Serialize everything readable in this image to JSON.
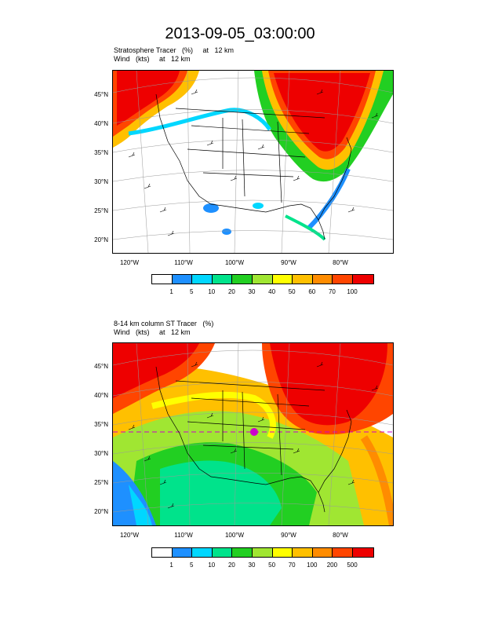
{
  "title": "2013-09-05_03:00:00",
  "panels": [
    {
      "label_line1": "Stratosphere Tracer   (%)     at   12 km",
      "label_line2": "Wind   (kts)     at   12 km",
      "lat_ticks": [
        "45°N",
        "40°N",
        "35°N",
        "30°N",
        "25°N",
        "20°N"
      ],
      "lon_ticks": [
        "120°W",
        "110°W",
        "100°W",
        "90°W",
        "80°W"
      ],
      "colorbar_labels": [
        "1",
        "5",
        "10",
        "20",
        "30",
        "40",
        "50",
        "60",
        "70",
        "100"
      ],
      "colorbar_colors": [
        "#ffffff",
        "#1e90ff",
        "#00d7ff",
        "#00e38b",
        "#22cf22",
        "#a0e632",
        "#ffff00",
        "#ffc000",
        "#ff8c00",
        "#ff4500",
        "#ee0000"
      ]
    },
    {
      "label_line1": "8-14 km column ST Tracer   (%)",
      "label_line2": "Wind   (kts)     at   12 km",
      "lat_ticks": [
        "45°N",
        "40°N",
        "35°N",
        "30°N",
        "25°N",
        "20°N"
      ],
      "lon_ticks": [
        "120°W",
        "110°W",
        "100°W",
        "90°W",
        "80°W"
      ],
      "colorbar_labels": [
        "1",
        "5",
        "10",
        "20",
        "30",
        "50",
        "70",
        "100",
        "200",
        "500"
      ],
      "colorbar_colors": [
        "#ffffff",
        "#1e90ff",
        "#00d7ff",
        "#00e38b",
        "#22cf22",
        "#a0e632",
        "#ffff00",
        "#ffc000",
        "#ff8c00",
        "#ff4500",
        "#ee0000"
      ]
    }
  ]
}
